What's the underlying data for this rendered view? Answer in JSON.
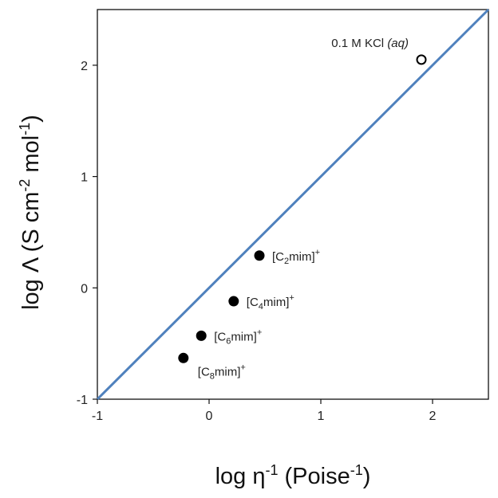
{
  "chart_data": {
    "type": "scatter",
    "xlim": [
      -1,
      2.5
    ],
    "ylim": [
      -1,
      2.5
    ],
    "x_ticks": [
      "-1",
      "0",
      "1",
      "2"
    ],
    "y_ticks": [
      "-1",
      "0",
      "1",
      "2"
    ],
    "xlabel": {
      "base": "log η",
      "sup": "-1",
      "rest": " (Poise",
      "sup2": "-1",
      "end": ")"
    },
    "ylabel": {
      "base": "log Λ (S cm",
      "sup": "-2",
      "rest": " mol",
      "sup2": "-1",
      "end": ")"
    },
    "reference_line": {
      "from": [
        -1,
        -1
      ],
      "to": [
        2.5,
        2.5
      ],
      "color": "#4f81bd"
    },
    "points": [
      {
        "x": 1.9,
        "y": 2.05,
        "filled": false,
        "label": {
          "main": "0.1 M KCl ",
          "italic": "(aq)"
        }
      },
      {
        "x": 0.45,
        "y": 0.29,
        "filled": true,
        "label": {
          "pre": "[C",
          "sub": "2",
          "post": "mim]",
          "sup": "+"
        }
      },
      {
        "x": 0.22,
        "y": -0.12,
        "filled": true,
        "label": {
          "pre": "[C",
          "sub": "4",
          "post": "mim]",
          "sup": "+"
        }
      },
      {
        "x": -0.07,
        "y": -0.43,
        "filled": true,
        "label": {
          "pre": "[C",
          "sub": "6",
          "post": "mim]",
          "sup": "+"
        }
      },
      {
        "x": -0.23,
        "y": -0.63,
        "filled": true,
        "label": {
          "pre": "[C",
          "sub": "8",
          "post": "mim]",
          "sup": "+"
        }
      }
    ],
    "grid": false,
    "legend": "none"
  }
}
